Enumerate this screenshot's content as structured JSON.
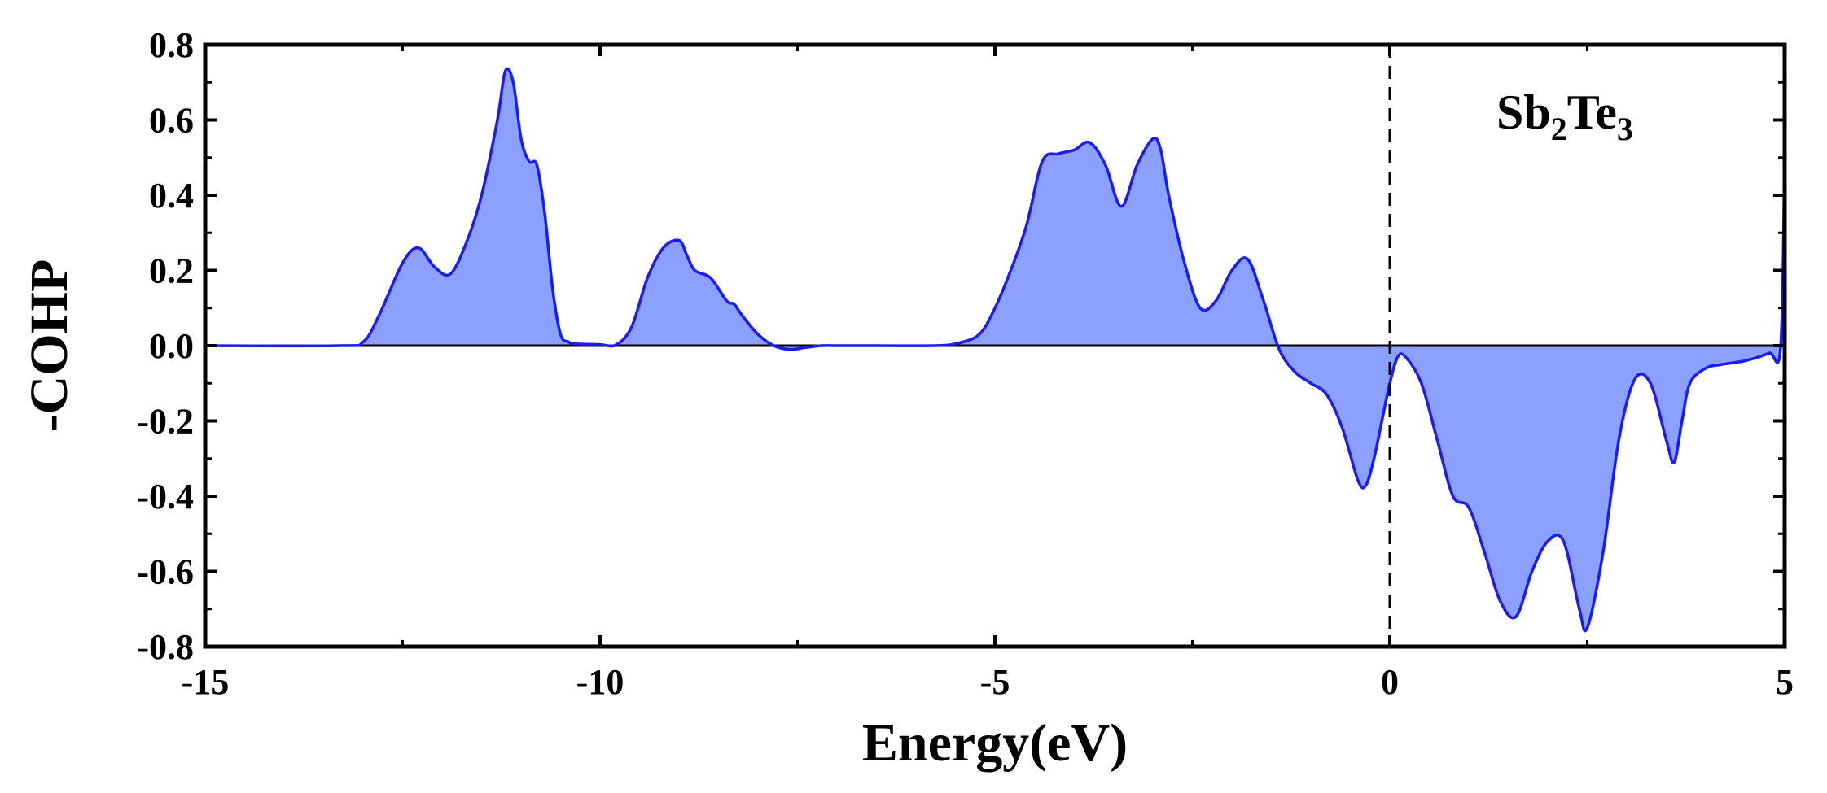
{
  "chart_data": {
    "type": "area",
    "xlabel": "Energy(eV)",
    "ylabel": "-COHP",
    "xlim": [
      -15,
      5
    ],
    "ylim": [
      -0.8,
      0.8
    ],
    "xticks": [
      -15,
      -10,
      -5,
      0,
      5
    ],
    "xtick_labels": [
      "-15",
      "-10",
      "-5",
      "0",
      "5"
    ],
    "yticks": [
      -0.8,
      -0.6,
      -0.4,
      -0.2,
      0.0,
      0.2,
      0.4,
      0.6,
      0.8
    ],
    "ytick_labels": [
      "-0.8",
      "-0.6",
      "-0.4",
      "-0.2",
      "0.0",
      "0.2",
      "0.4",
      "0.6",
      "0.8"
    ],
    "grid": false,
    "fermi_level": 0,
    "annotation": {
      "base": "Sb",
      "sub1": "2",
      "mid": "Te",
      "sub2": "3"
    },
    "colors": {
      "line": "#1a1aff",
      "fill": "#8ca0ff"
    },
    "x": [
      -15,
      -13.3,
      -13,
      -12.8,
      -12.5,
      -12.3,
      -12.1,
      -11.9,
      -11.7,
      -11.5,
      -11.3,
      -11.2,
      -11.1,
      -11.0,
      -10.9,
      -10.8,
      -10.7,
      -10.6,
      -10.5,
      -10.4,
      -10.3,
      -10.0,
      -9.8,
      -9.6,
      -9.4,
      -9.2,
      -9.0,
      -8.9,
      -8.8,
      -8.6,
      -8.4,
      -8.3,
      -8.2,
      -8.0,
      -7.8,
      -7.6,
      -7.4,
      -7.2,
      -7.0,
      -6.5,
      -5.8,
      -5.5,
      -5.2,
      -5.0,
      -4.8,
      -4.6,
      -4.4,
      -4.2,
      -4.0,
      -3.8,
      -3.6,
      -3.4,
      -3.2,
      -3.0,
      -2.9,
      -2.8,
      -2.6,
      -2.4,
      -2.2,
      -2.0,
      -1.8,
      -1.6,
      -1.4,
      -1.2,
      -1.0,
      -0.8,
      -0.6,
      -0.4,
      -0.3,
      -0.2,
      -0.1,
      0.0,
      0.1,
      0.2,
      0.4,
      0.6,
      0.8,
      1.0,
      1.2,
      1.4,
      1.6,
      1.8,
      2.0,
      2.2,
      2.4,
      2.5,
      2.7,
      2.9,
      3.1,
      3.3,
      3.5,
      3.6,
      3.7,
      3.8,
      4.0,
      4.2,
      4.5,
      4.8,
      4.95,
      5.0
    ],
    "y": [
      0.0,
      0.0,
      0.01,
      0.08,
      0.22,
      0.26,
      0.21,
      0.19,
      0.27,
      0.4,
      0.6,
      0.73,
      0.7,
      0.55,
      0.49,
      0.48,
      0.35,
      0.15,
      0.03,
      0.01,
      0.005,
      0.003,
      0.002,
      0.05,
      0.18,
      0.26,
      0.28,
      0.24,
      0.2,
      0.18,
      0.12,
      0.11,
      0.08,
      0.03,
      0.0,
      -0.01,
      -0.005,
      0.0,
      0.0,
      0.0,
      0.0,
      0.005,
      0.03,
      0.1,
      0.2,
      0.32,
      0.49,
      0.51,
      0.52,
      0.54,
      0.48,
      0.37,
      0.48,
      0.55,
      0.52,
      0.4,
      0.22,
      0.1,
      0.12,
      0.2,
      0.23,
      0.12,
      -0.01,
      -0.07,
      -0.1,
      -0.13,
      -0.22,
      -0.36,
      -0.37,
      -0.3,
      -0.2,
      -0.1,
      -0.03,
      -0.03,
      -0.1,
      -0.25,
      -0.4,
      -0.43,
      -0.55,
      -0.68,
      -0.72,
      -0.6,
      -0.52,
      -0.52,
      -0.7,
      -0.75,
      -0.55,
      -0.25,
      -0.09,
      -0.1,
      -0.25,
      -0.31,
      -0.2,
      -0.1,
      -0.06,
      -0.05,
      -0.04,
      -0.02,
      0.0,
      0.53
    ]
  }
}
